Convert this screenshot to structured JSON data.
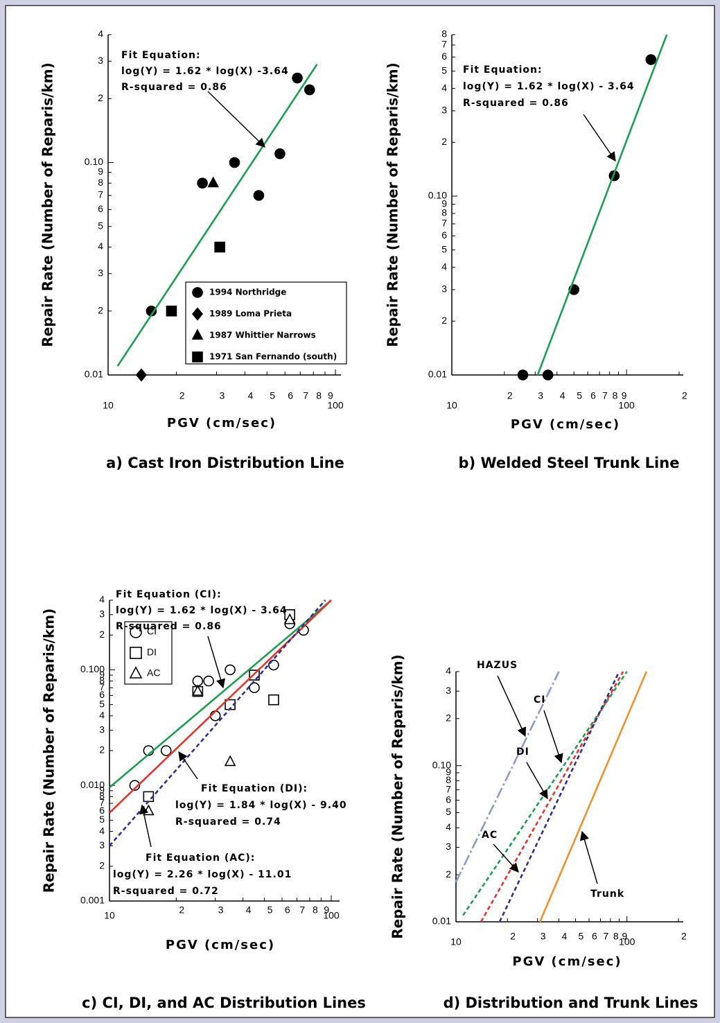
{
  "chart_data": [
    {
      "type": "scatter",
      "title": "a) Cast Iron Distribution Line",
      "xlabel": "PGV (cm/sec)",
      "ylabel": "Repair Rate (Number of Reparis/km)",
      "log_x": true,
      "log_y": true,
      "grid": false,
      "legend": "lower right",
      "xlim": [
        10,
        100
      ],
      "ylim": [
        0.01,
        0.4
      ],
      "xticks": [
        10,
        {
          "value": 20,
          "label": "2"
        },
        {
          "value": 30,
          "label": "3"
        },
        {
          "value": 40,
          "label": "4"
        },
        {
          "value": 50,
          "label": "5"
        },
        {
          "value": 60,
          "label": "6"
        },
        {
          "value": 70,
          "label": "7"
        },
        {
          "value": 80,
          "label": "8"
        },
        {
          "value": 90,
          "label": "9"
        },
        100
      ],
      "yticks": [
        0.01,
        {
          "value": 0.02,
          "label": "2"
        },
        {
          "value": 0.03,
          "label": "3"
        },
        {
          "value": 0.04,
          "label": "4"
        },
        {
          "value": 0.05,
          "label": "5"
        },
        {
          "value": 0.06,
          "label": "6"
        },
        {
          "value": 0.07,
          "label": "7"
        },
        {
          "value": 0.08,
          "label": "8"
        },
        {
          "value": 0.09,
          "label": "9"
        },
        {
          "value": 0.1,
          "label": "0.10"
        },
        {
          "value": 0.2,
          "label": "2"
        },
        {
          "value": 0.3,
          "label": "3"
        },
        {
          "value": 0.4,
          "label": "4"
        }
      ],
      "series": [
        {
          "name": "1994 Northridge",
          "marker": "circle",
          "filled": true,
          "color": "#000000",
          "x": [
            15.5,
            26,
            36,
            46,
            57,
            68,
            77
          ],
          "values": [
            0.02,
            0.08,
            0.1,
            0.07,
            0.11,
            0.25,
            0.22
          ]
        },
        {
          "name": "1989 Loma Prieta",
          "marker": "diamond",
          "filled": true,
          "color": "#000000",
          "x": [
            14
          ],
          "values": [
            0.01
          ]
        },
        {
          "name": "1987 Whittier Narrows",
          "marker": "triangle",
          "filled": true,
          "color": "#000000",
          "x": [
            29
          ],
          "values": [
            0.08
          ]
        },
        {
          "name": "1971 San Fernando (south)",
          "marker": "square",
          "filled": true,
          "color": "#000000",
          "x": [
            19,
            31
          ],
          "values": [
            0.02,
            0.04
          ]
        },
        {
          "line": "solid",
          "color": "#1aa050",
          "x": [
            11,
            83
          ],
          "values": [
            0.011,
            0.29
          ]
        }
      ],
      "annotations": [
        [
          "Fit Equation:",
          "log(Y) = 1.62 * log(X) -3.64",
          "R-squared = 0.86"
        ]
      ]
    },
    {
      "type": "scatter",
      "title": "b) Welded Steel Trunk Line",
      "xlabel": "PGV (cm/sec)",
      "ylabel": "Repair Rate (Number of Reparis/km)",
      "log_x": true,
      "log_y": true,
      "grid": false,
      "xlim": [
        10,
        200
      ],
      "ylim": [
        0.01,
        0.8
      ],
      "xticks": [
        10,
        {
          "value": 20,
          "label": "2"
        },
        {
          "value": 30,
          "label": "3"
        },
        {
          "value": 40,
          "label": "4"
        },
        {
          "value": 50,
          "label": "5"
        },
        {
          "value": 60,
          "label": "6"
        },
        {
          "value": 70,
          "label": "7"
        },
        {
          "value": 80,
          "label": "8"
        },
        {
          "value": 90,
          "label": "9"
        },
        100,
        {
          "value": 200,
          "label": "2"
        }
      ],
      "yticks": [
        0.01,
        {
          "value": 0.02,
          "label": "2"
        },
        {
          "value": 0.03,
          "label": "3"
        },
        {
          "value": 0.04,
          "label": "4"
        },
        {
          "value": 0.05,
          "label": "5"
        },
        {
          "value": 0.06,
          "label": "6"
        },
        {
          "value": 0.07,
          "label": "7"
        },
        {
          "value": 0.08,
          "label": "8"
        },
        {
          "value": 0.09,
          "label": "9"
        },
        {
          "value": 0.1,
          "label": "0.10"
        },
        {
          "value": 0.2,
          "label": "2"
        },
        {
          "value": 0.3,
          "label": "3"
        },
        {
          "value": 0.4,
          "label": "4"
        },
        {
          "value": 0.5,
          "label": "5"
        },
        {
          "value": 0.6,
          "label": "6"
        },
        {
          "value": 0.7,
          "label": "7"
        },
        {
          "value": 0.8,
          "label": "8"
        }
      ],
      "series": [
        {
          "marker": "circle",
          "filled": true,
          "color": "#000000",
          "x": [
            25.5,
            35.5,
            50,
            85,
            138
          ],
          "values": [
            0.01,
            0.01,
            0.03,
            0.13,
            0.58
          ]
        },
        {
          "line": "solid",
          "color": "#1aa050",
          "x": [
            31,
            170
          ],
          "values": [
            0.01,
            0.8
          ]
        }
      ],
      "annotations": [
        [
          "Fit Equation:",
          "log(Y) = 1.62 * log(X) - 3.64",
          "R-squared = 0.86"
        ]
      ]
    },
    {
      "type": "scatter",
      "title": "c) CI, DI, and AC  Distribution Lines",
      "xlabel": "PGV (cm/sec)",
      "ylabel": "Repair Rate (Number of Reparis/km)",
      "log_x": true,
      "log_y": true,
      "grid": false,
      "legend": "upper left",
      "xlim": [
        10,
        100
      ],
      "ylim": [
        0.001,
        0.4
      ],
      "xticks": [
        10,
        {
          "value": 20,
          "label": "2"
        },
        {
          "value": 30,
          "label": "3"
        },
        {
          "value": 40,
          "label": "4"
        },
        {
          "value": 50,
          "label": "5"
        },
        {
          "value": 60,
          "label": "6"
        },
        {
          "value": 70,
          "label": "7"
        },
        {
          "value": 80,
          "label": "8"
        },
        {
          "value": 90,
          "label": "9"
        },
        100
      ],
      "yticks": [
        0.001,
        {
          "value": 0.002,
          "label": "2"
        },
        {
          "value": 0.003,
          "label": "3"
        },
        {
          "value": 0.004,
          "label": "4"
        },
        {
          "value": 0.005,
          "label": "5"
        },
        {
          "value": 0.006,
          "label": "6"
        },
        {
          "value": 0.007,
          "label": "7"
        },
        {
          "value": 0.008,
          "label": "8"
        },
        {
          "value": 0.009,
          "label": "9"
        },
        {
          "value": 0.01,
          "label": "0.010"
        },
        {
          "value": 0.02,
          "label": "2"
        },
        {
          "value": 0.03,
          "label": "3"
        },
        {
          "value": 0.04,
          "label": "4"
        },
        {
          "value": 0.05,
          "label": "5"
        },
        {
          "value": 0.06,
          "label": "6"
        },
        {
          "value": 0.07,
          "label": "7"
        },
        {
          "value": 0.08,
          "label": "8"
        },
        {
          "value": 0.09,
          "label": "9"
        },
        {
          "value": 0.1,
          "label": "0.100"
        },
        {
          "value": 0.2,
          "label": "2"
        },
        {
          "value": 0.3,
          "label": "3"
        },
        {
          "value": 0.4,
          "label": "4"
        }
      ],
      "series": [
        {
          "name": "CI",
          "marker": "circle",
          "filled": false,
          "color": "#000000",
          "x": [
            13,
            15,
            18,
            25,
            28,
            30,
            35,
            45,
            55,
            65,
            75
          ],
          "values": [
            0.01,
            0.02,
            0.02,
            0.08,
            0.08,
            0.04,
            0.1,
            0.07,
            0.11,
            0.25,
            0.22
          ]
        },
        {
          "name": "DI",
          "marker": "square",
          "filled": false,
          "color": "#000000",
          "x": [
            15,
            25,
            35,
            45,
            55,
            65
          ],
          "values": [
            0.008,
            0.065,
            0.05,
            0.09,
            0.055,
            0.3
          ]
        },
        {
          "name": "AC",
          "marker": "triangle",
          "filled": false,
          "color": "#000000",
          "x": [
            15,
            25,
            35,
            65
          ],
          "values": [
            0.006,
            0.065,
            0.016,
            0.27
          ]
        },
        {
          "line": "solid",
          "color": "#1aa050",
          "x": [
            10,
            100
          ],
          "values": [
            0.0096,
            0.4
          ]
        },
        {
          "line": "solid",
          "color": "#e8332b",
          "x": [
            10,
            100
          ],
          "values": [
            0.0058,
            0.4
          ]
        },
        {
          "line": "dashed",
          "color": "#2e3192",
          "x": [
            10,
            94
          ],
          "values": [
            0.003,
            0.4
          ]
        }
      ],
      "annotations": [
        [
          "Fit Equation (CI):",
          "log(Y) = 1.62 * log(X) - 3.64",
          "R-squared = 0.86"
        ],
        [
          "Fit Equation (DI):",
          "log(Y) = 1.84 * log(X) - 9.40",
          "R-squared = 0.74"
        ],
        [
          "Fit Equation (AC):",
          "log(Y) = 2.26 * log(X) - 11.01",
          "R-squared = 0.72"
        ]
      ]
    },
    {
      "type": "line",
      "title": "d) Distribution and Trunk Lines",
      "xlabel": "PGV (cm/sec)",
      "ylabel": "Repair Rate (Number of Reparis/km)",
      "log_x": true,
      "log_y": true,
      "grid": false,
      "xlim": [
        10,
        200
      ],
      "ylim": [
        0.01,
        0.4
      ],
      "xticks": [
        10,
        {
          "value": 20,
          "label": "2"
        },
        {
          "value": 30,
          "label": "3"
        },
        {
          "value": 40,
          "label": "4"
        },
        {
          "value": 50,
          "label": "5"
        },
        {
          "value": 60,
          "label": "6"
        },
        {
          "value": 70,
          "label": "7"
        },
        {
          "value": 80,
          "label": "8"
        },
        {
          "value": 90,
          "label": "9"
        },
        100,
        {
          "value": 200,
          "label": "2"
        }
      ],
      "yticks": [
        0.01,
        {
          "value": 0.02,
          "label": "2"
        },
        {
          "value": 0.03,
          "label": "3"
        },
        {
          "value": 0.04,
          "label": "4"
        },
        {
          "value": 0.05,
          "label": "5"
        },
        {
          "value": 0.06,
          "label": "6"
        },
        {
          "value": 0.07,
          "label": "7"
        },
        {
          "value": 0.08,
          "label": "8"
        },
        {
          "value": 0.09,
          "label": "9"
        },
        {
          "value": 0.1,
          "label": "0.10"
        },
        {
          "value": 0.2,
          "label": "2"
        },
        {
          "value": 0.3,
          "label": "3"
        },
        {
          "value": 0.4,
          "label": "4"
        }
      ],
      "series": [
        {
          "name": "HAZUS",
          "line": "dashdot",
          "color": "#8a9bc8",
          "x": [
            10,
            40
          ],
          "values": [
            0.018,
            0.4
          ]
        },
        {
          "name": "CI",
          "line": "dashed",
          "color": "#1aa050",
          "x": [
            11,
            100
          ],
          "values": [
            0.011,
            0.4
          ]
        },
        {
          "name": "DI",
          "line": "dashed",
          "color": "#e8332b",
          "x": [
            14,
            95
          ],
          "values": [
            0.01,
            0.4
          ]
        },
        {
          "name": "AC",
          "line": "dashed",
          "color": "#2e3192",
          "x": [
            18,
            90
          ],
          "values": [
            0.01,
            0.4
          ]
        },
        {
          "name": "Trunk",
          "line": "solid",
          "color": "#f0902e",
          "x": [
            31,
            130
          ],
          "values": [
            0.01,
            0.4
          ]
        }
      ]
    }
  ]
}
